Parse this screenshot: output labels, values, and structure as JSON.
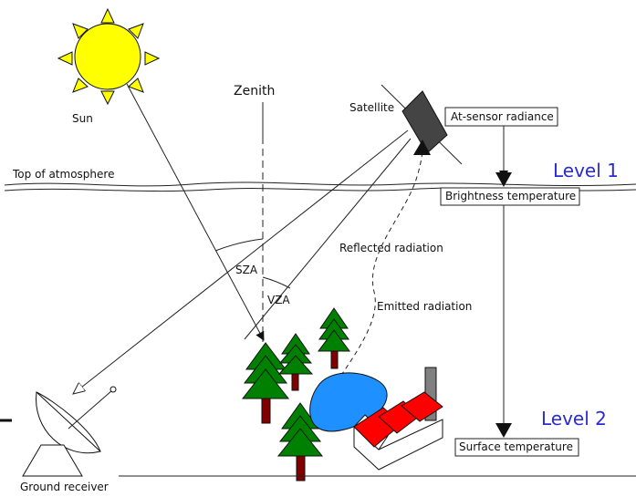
{
  "labels": {
    "sun": "Sun",
    "zenith": "Zenith",
    "satellite": "Satellite",
    "top_of_atmosphere": "Top of atmosphere",
    "sza": "SZA",
    "vza": "VZA",
    "reflected_radiation": "Reflected radiation",
    "emitted_radiation": "Emitted radiation",
    "ground_receiver": "Ground receiver"
  },
  "boxes": {
    "at_sensor_radiance": "At-sensor radiance",
    "brightness_temperature": "Brightness temperature",
    "surface_temperature": "Surface temperature"
  },
  "levels": {
    "level1": "Level 1",
    "level2": "Level 2"
  },
  "colors": {
    "sun_fill": "#ffff00",
    "sun_ray": "#ffff00",
    "level_text": "#2a2ad6",
    "tree_green": "#008000",
    "trunk": "#800000",
    "lake": "#1e90ff",
    "roof_red": "#ff0000",
    "chimney": "#808080",
    "satellite": "#444444"
  }
}
